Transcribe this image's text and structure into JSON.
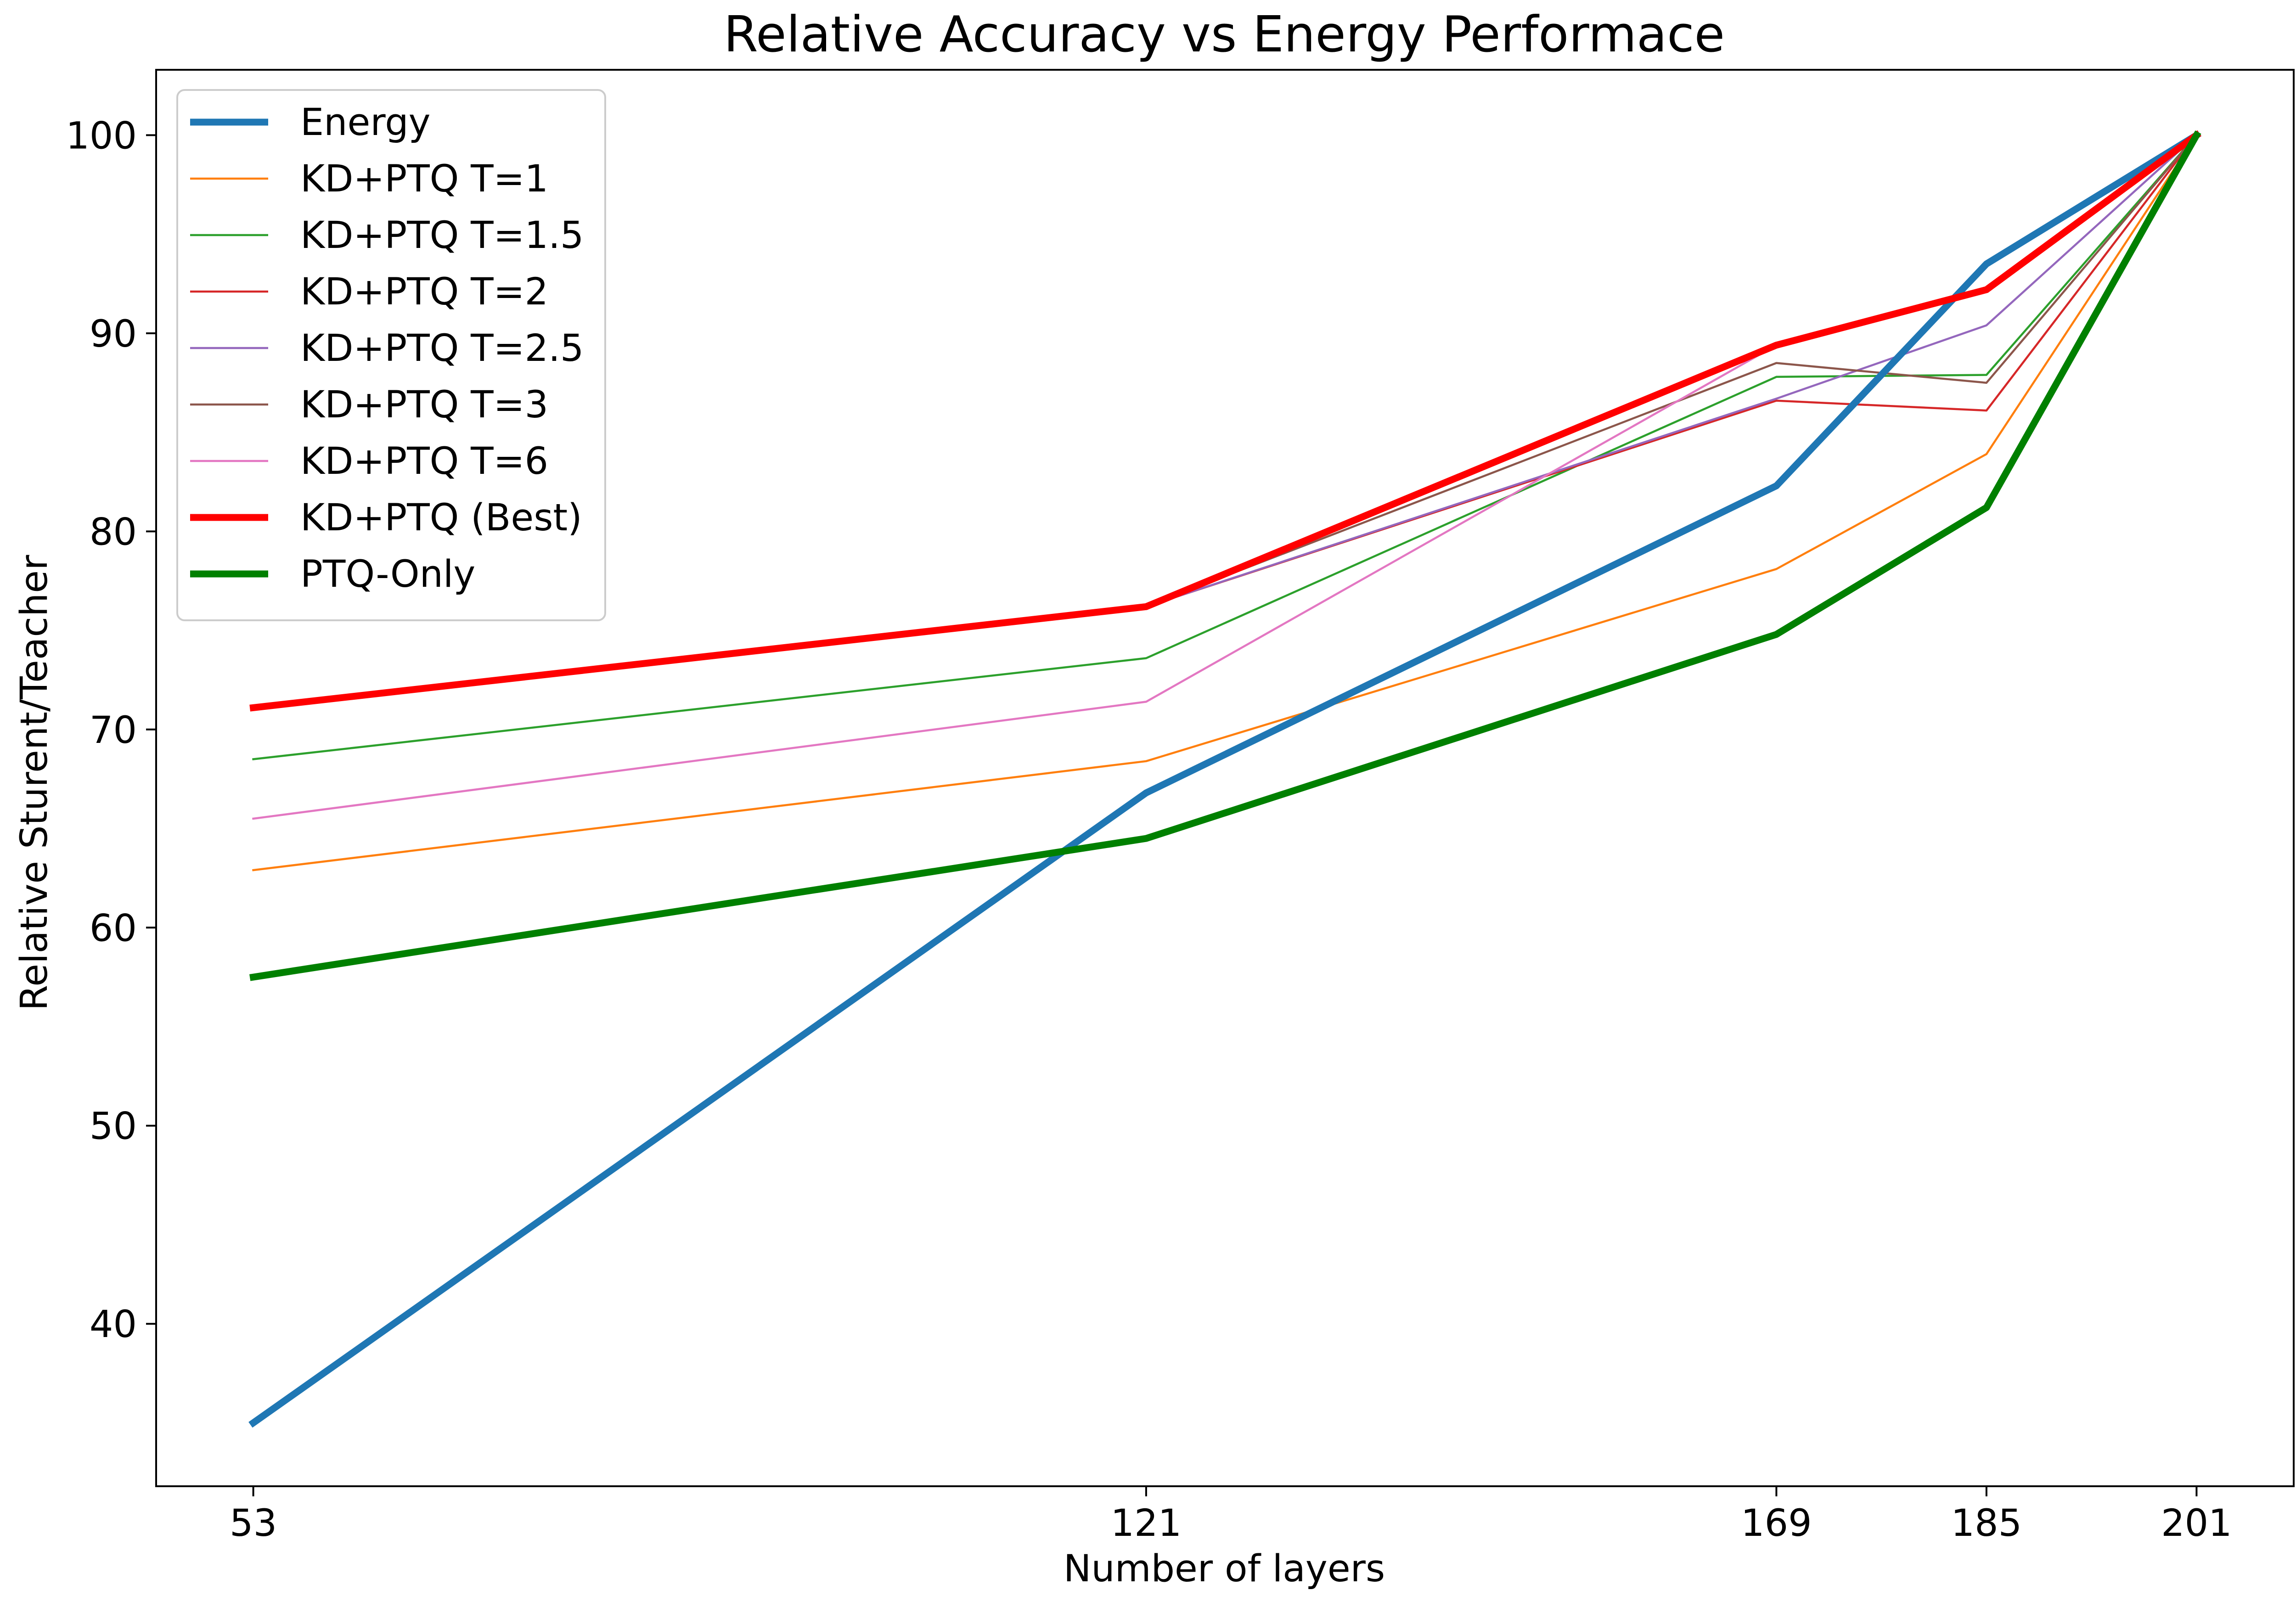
{
  "chart_data": {
    "type": "line",
    "title": "Relative Accuracy vs Energy Performace",
    "xlabel": "Number of layers",
    "ylabel": "Relative Sturent/Teacher",
    "x": [
      53,
      121,
      169,
      185,
      201
    ],
    "xticks": [
      "53",
      "121",
      "169",
      "185",
      "201"
    ],
    "xlim": [
      45.6,
      208.4
    ],
    "ylim": [
      31.8,
      103.3
    ],
    "yticks": [
      40,
      50,
      60,
      70,
      80,
      90,
      100
    ],
    "grid": false,
    "legend_position": "top-left",
    "series": [
      {
        "name": "Energy",
        "color": "#1f77b4",
        "weight": "thick",
        "values": [
          35.0,
          66.8,
          82.3,
          93.5,
          100.0
        ]
      },
      {
        "name": "KD+PTQ T=1",
        "color": "#ff7f0e",
        "weight": "thin",
        "values": [
          62.9,
          68.4,
          78.1,
          83.9,
          100.0
        ]
      },
      {
        "name": "KD+PTQ T=1.5",
        "color": "#2ca02c",
        "weight": "thin",
        "values": [
          68.5,
          73.6,
          87.8,
          87.9,
          100.0
        ]
      },
      {
        "name": "KD+PTQ T=2",
        "color": "#d62728",
        "weight": "thin",
        "values": [
          71.0,
          76.2,
          86.6,
          86.1,
          100.0
        ]
      },
      {
        "name": "KD+PTQ T=2.5",
        "color": "#9467bd",
        "weight": "thin",
        "values": [
          71.0,
          76.2,
          86.7,
          90.4,
          100.0
        ]
      },
      {
        "name": "KD+PTQ T=3",
        "color": "#8c564b",
        "weight": "thin",
        "values": [
          71.0,
          76.2,
          88.5,
          87.5,
          100.0
        ]
      },
      {
        "name": "KD+PTQ T=6",
        "color": "#e377c2",
        "weight": "thin",
        "values": [
          65.5,
          71.4,
          89.4,
          92.2,
          100.0
        ]
      },
      {
        "name": "KD+PTQ (Best)",
        "color": "#ff0000",
        "weight": "thick",
        "values": [
          71.1,
          76.2,
          89.4,
          92.2,
          100.0
        ]
      },
      {
        "name": "PTQ-Only",
        "color": "#008000",
        "weight": "thick",
        "values": [
          57.5,
          64.5,
          74.8,
          81.2,
          100.0
        ]
      }
    ]
  }
}
